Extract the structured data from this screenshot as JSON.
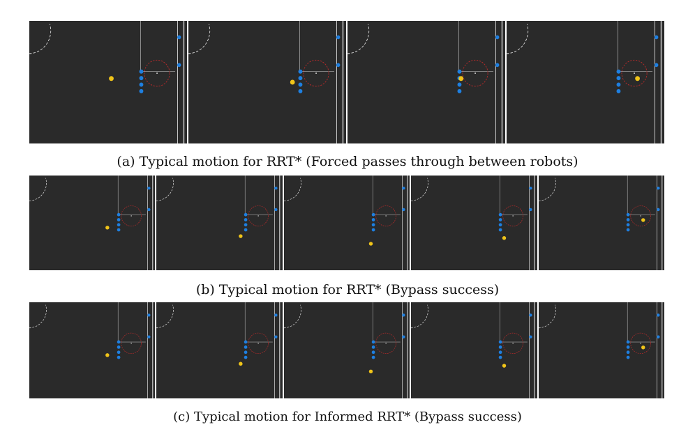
{
  "figure": {
    "rows": [
      {
        "id": "a",
        "caption": "(a) Typical motion for RRT* (Forced passes through between robots)",
        "panels": [
          {
            "ball": "left-far",
            "gap": false
          },
          {
            "ball": "mid-left",
            "gap": true
          },
          {
            "ball": "near-left",
            "gap": true
          },
          {
            "ball": "right",
            "gap": true
          }
        ]
      },
      {
        "id": "b",
        "caption": "(b) Typical motion for RRT* (Bypass success)",
        "panels": [
          {
            "ball": "left"
          },
          {
            "ball": "lower-left"
          },
          {
            "ball": "below"
          },
          {
            "ball": "below-right"
          },
          {
            "ball": "right"
          }
        ]
      },
      {
        "id": "c",
        "caption": "(c) Typical motion for Informed RRT* (Bypass success)",
        "panels": [
          {
            "ball": "left"
          },
          {
            "ball": "lower-left"
          },
          {
            "ball": "below"
          },
          {
            "ball": "below-right"
          },
          {
            "ball": "right"
          }
        ]
      }
    ],
    "colors": {
      "field": "#2a2a2a",
      "blue_robot": "#1e7fe0",
      "yellow_robot": "#f0c419",
      "target_circle": "#b52a2a",
      "lines": "#d9d9d9"
    }
  }
}
